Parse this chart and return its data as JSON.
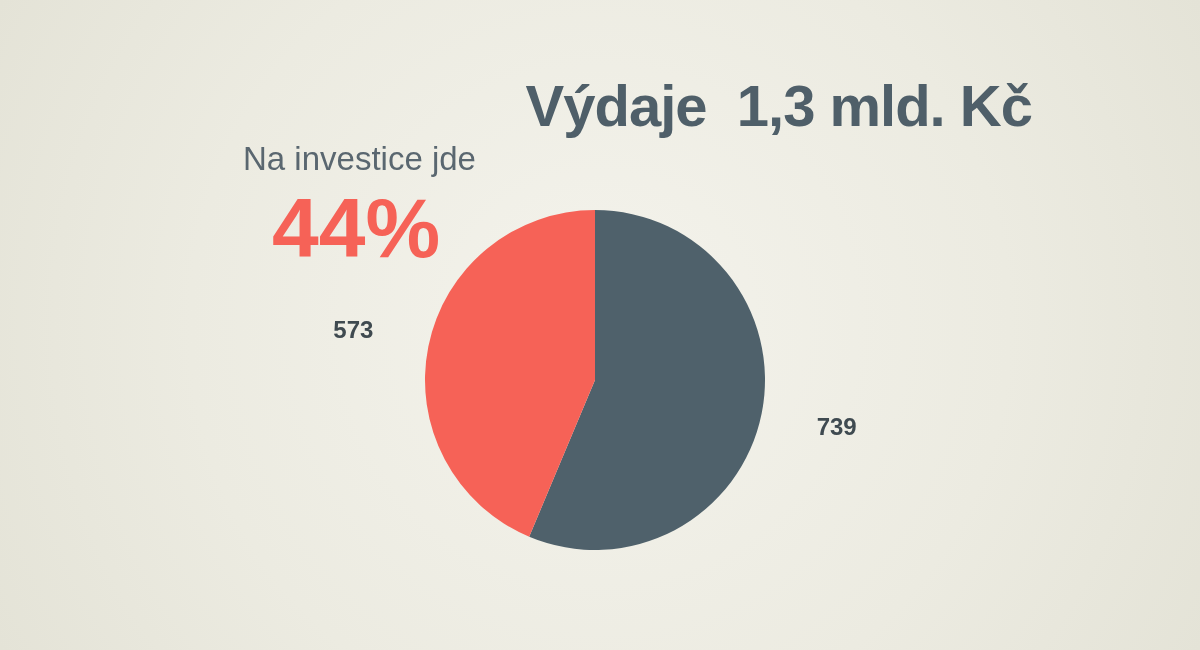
{
  "chart_data": {
    "type": "pie",
    "title": "Výdaje  1,3 mld. Kč",
    "annotations": [
      "Na investice jde",
      "44%"
    ],
    "categories": [
      null,
      null
    ],
    "values": [
      739,
      573
    ],
    "colors": [
      "#4f616b",
      "#f66257"
    ],
    "data_labels": true,
    "legend": false
  }
}
